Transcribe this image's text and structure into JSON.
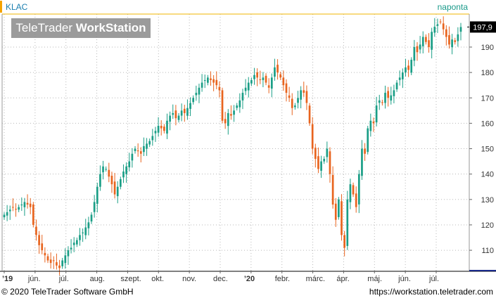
{
  "header": {
    "symbol": "KLAC",
    "frequency": "naponta",
    "logo_regular": "TeleTrader ",
    "logo_bold": "WorkStation"
  },
  "footer": {
    "copyright": "© 2020 TeleTrader Software GmbH",
    "url": "https://workstation.teletrader.com"
  },
  "colors": {
    "up": "#1a9e86",
    "down": "#e8641e",
    "grid": "#b8b8b8",
    "last_price_bg": "#000000",
    "axis_bar": "#1a2a8a"
  },
  "chart_data": {
    "type": "candlestick",
    "x_tick_labels": [
      "’19",
      "jún.",
      "júl.",
      "aug.",
      "szept.",
      "okt.",
      "nov.",
      "dec.",
      "’20",
      "febr.",
      "márc.",
      "ápr.",
      "máj.",
      "jún.",
      "júl."
    ],
    "y_ticks": [
      110,
      120,
      130,
      140,
      150,
      160,
      170,
      180,
      190
    ],
    "y_range": [
      102,
      203
    ],
    "last_price_label": "197,9",
    "last_price": 197.9,
    "grid": true,
    "closes": [
      124,
      125,
      126,
      127,
      126,
      127,
      128,
      129,
      128,
      127,
      120,
      116,
      112,
      110,
      108,
      106,
      105,
      106,
      104,
      103,
      106,
      108,
      110,
      111,
      113,
      114,
      116,
      117,
      119,
      121,
      124,
      129,
      135,
      140,
      143,
      142,
      139,
      136,
      132,
      135,
      138,
      141,
      143,
      145,
      148,
      150,
      149,
      148,
      151,
      152,
      153,
      155,
      157,
      159,
      158,
      157,
      161,
      163,
      164,
      162,
      163,
      165,
      164,
      166,
      168,
      170,
      172,
      174,
      176,
      177,
      178,
      177,
      176,
      175,
      173,
      161,
      160,
      164,
      163,
      165,
      167,
      169,
      172,
      174,
      176,
      177,
      179,
      178,
      177,
      178,
      176,
      174,
      178,
      182,
      180,
      178,
      175,
      172,
      170,
      166,
      167,
      170,
      173,
      172,
      168,
      160,
      150,
      146,
      142,
      145,
      146,
      150,
      140,
      128,
      122,
      130,
      116,
      111,
      130,
      136,
      132,
      127,
      140,
      150,
      148,
      158,
      161,
      160,
      167,
      169,
      168,
      172,
      170,
      171,
      173,
      176,
      178,
      180,
      182,
      181,
      185,
      190,
      188,
      191,
      194,
      192,
      190,
      196,
      198,
      199,
      200,
      197,
      194,
      191,
      193,
      192,
      195,
      197.9
    ]
  }
}
